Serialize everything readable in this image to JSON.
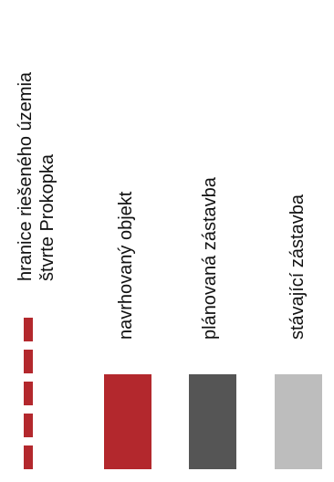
{
  "legend": {
    "items": [
      {
        "key": "boundary",
        "symbol": "dashed-line",
        "color": "#b3282d",
        "label_lines": [
          "hranice riešeného územia",
          "štvrte Prokopka"
        ]
      },
      {
        "key": "proposed",
        "symbol": "swatch",
        "color": "#b3282d",
        "label": "navrhovaný objekt"
      },
      {
        "key": "planned",
        "symbol": "swatch",
        "color": "#555555",
        "label": "plánovaná zástavba"
      },
      {
        "key": "existing",
        "symbol": "swatch",
        "color": "#bdbdbd",
        "label": "stávající zástavba"
      }
    ]
  }
}
